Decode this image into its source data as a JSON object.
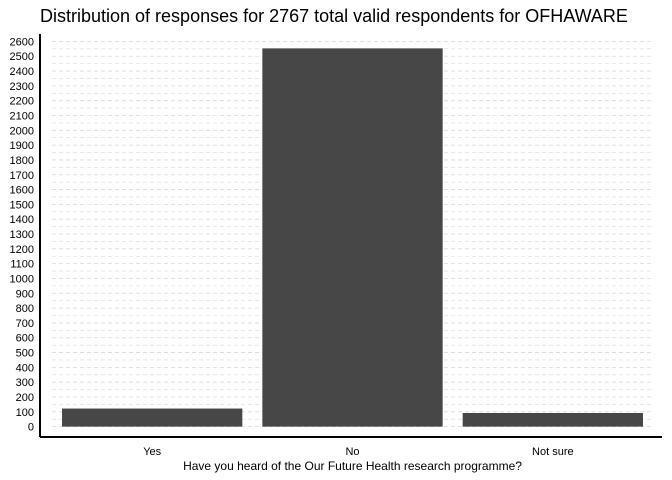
{
  "chart_data": {
    "type": "bar",
    "title": "Distribution of responses for 2767 total valid respondents for OFHAWARE",
    "xlabel": "Have you heard of the Our Future Health research programme?",
    "ylabel": "",
    "categories": [
      "Yes",
      "No",
      "Not sure"
    ],
    "values": [
      122,
      2553,
      92
    ],
    "ylim": [
      -70,
      2650
    ],
    "yticks": [
      0,
      100,
      200,
      300,
      400,
      500,
      600,
      700,
      800,
      900,
      1000,
      1100,
      1200,
      1300,
      1400,
      1500,
      1600,
      1700,
      1800,
      1900,
      2000,
      2100,
      2200,
      2300,
      2400,
      2500,
      2600
    ],
    "grid": true,
    "legend": "none",
    "colors": {
      "bar": "#474747",
      "grid": "#d9d9d9",
      "axis": "#000000"
    }
  }
}
